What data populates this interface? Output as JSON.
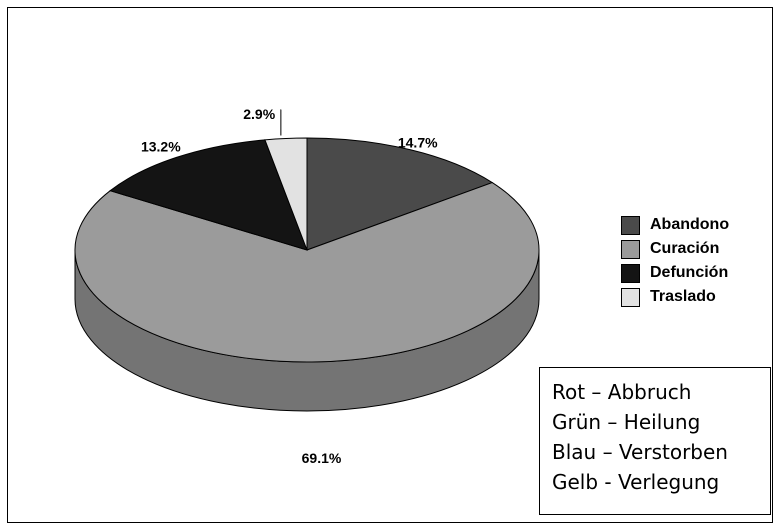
{
  "chart_data": {
    "type": "pie",
    "style": "3d",
    "categories": [
      "Abandono",
      "Curación",
      "Defunción",
      "Traslado"
    ],
    "values": [
      14.7,
      69.1,
      13.2,
      2.9
    ],
    "labels": [
      "14.7%",
      "69.1%",
      "13.2%",
      "2.9%"
    ],
    "colors": [
      "#4a4a4a",
      "#9b9b9b",
      "#141414",
      "#e2e2e2"
    ],
    "legend_position": "right",
    "legend": [
      {
        "label": "Abandono",
        "color": "#4a4a4a"
      },
      {
        "label": "Curación",
        "color": "#9b9b9b"
      },
      {
        "label": "Defunción",
        "color": "#141414"
      },
      {
        "label": "Traslado",
        "color": "#e2e2e2"
      }
    ]
  },
  "notes": [
    "Rot – Abbruch",
    "Grün – Heilung",
    "Blau – Verstorben",
    "Gelb - Verlegung"
  ]
}
